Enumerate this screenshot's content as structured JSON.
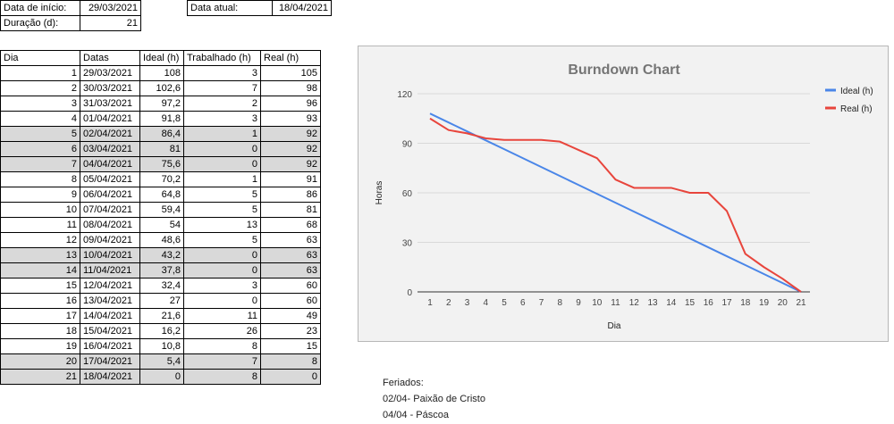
{
  "header": {
    "start_label": "Data de início:",
    "start_value": "29/03/2021",
    "current_label": "Data atual:",
    "current_value": "18/04/2021",
    "duration_label": "Duração (d):",
    "duration_value": "21"
  },
  "table": {
    "columns": [
      "Dia",
      "Datas",
      "Ideal (h)",
      "Trabalhado (h)",
      "Real (h)"
    ],
    "rows": [
      {
        "dia": "1",
        "data": "29/03/2021",
        "ideal": "108",
        "trab": "3",
        "real": "105",
        "hl": false
      },
      {
        "dia": "2",
        "data": "30/03/2021",
        "ideal": "102,6",
        "trab": "7",
        "real": "98",
        "hl": false
      },
      {
        "dia": "3",
        "data": "31/03/2021",
        "ideal": "97,2",
        "trab": "2",
        "real": "96",
        "hl": false
      },
      {
        "dia": "4",
        "data": "01/04/2021",
        "ideal": "91,8",
        "trab": "3",
        "real": "93",
        "hl": false
      },
      {
        "dia": "5",
        "data": "02/04/2021",
        "ideal": "86,4",
        "trab": "1",
        "real": "92",
        "hl": true
      },
      {
        "dia": "6",
        "data": "03/04/2021",
        "ideal": "81",
        "trab": "0",
        "real": "92",
        "hl": true
      },
      {
        "dia": "7",
        "data": "04/04/2021",
        "ideal": "75,6",
        "trab": "0",
        "real": "92",
        "hl": true
      },
      {
        "dia": "8",
        "data": "05/04/2021",
        "ideal": "70,2",
        "trab": "1",
        "real": "91",
        "hl": false
      },
      {
        "dia": "9",
        "data": "06/04/2021",
        "ideal": "64,8",
        "trab": "5",
        "real": "86",
        "hl": false
      },
      {
        "dia": "10",
        "data": "07/04/2021",
        "ideal": "59,4",
        "trab": "5",
        "real": "81",
        "hl": false
      },
      {
        "dia": "11",
        "data": "08/04/2021",
        "ideal": "54",
        "trab": "13",
        "real": "68",
        "hl": false
      },
      {
        "dia": "12",
        "data": "09/04/2021",
        "ideal": "48,6",
        "trab": "5",
        "real": "63",
        "hl": false
      },
      {
        "dia": "13",
        "data": "10/04/2021",
        "ideal": "43,2",
        "trab": "0",
        "real": "63",
        "hl": true
      },
      {
        "dia": "14",
        "data": "11/04/2021",
        "ideal": "37,8",
        "trab": "0",
        "real": "63",
        "hl": true
      },
      {
        "dia": "15",
        "data": "12/04/2021",
        "ideal": "32,4",
        "trab": "3",
        "real": "60",
        "hl": false
      },
      {
        "dia": "16",
        "data": "13/04/2021",
        "ideal": "27",
        "trab": "0",
        "real": "60",
        "hl": false
      },
      {
        "dia": "17",
        "data": "14/04/2021",
        "ideal": "21,6",
        "trab": "11",
        "real": "49",
        "hl": false
      },
      {
        "dia": "18",
        "data": "15/04/2021",
        "ideal": "16,2",
        "trab": "26",
        "real": "23",
        "hl": false
      },
      {
        "dia": "19",
        "data": "16/04/2021",
        "ideal": "10,8",
        "trab": "8",
        "real": "15",
        "hl": false
      },
      {
        "dia": "20",
        "data": "17/04/2021",
        "ideal": "5,4",
        "trab": "7",
        "real": "8",
        "hl": true
      },
      {
        "dia": "21",
        "data": "18/04/2021",
        "ideal": "0",
        "trab": "8",
        "real": "0",
        "hl": true
      }
    ]
  },
  "chart_data": {
    "type": "line",
    "title": "Burndown Chart",
    "xlabel": "Dia",
    "ylabel": "Horas",
    "x": [
      1,
      2,
      3,
      4,
      5,
      6,
      7,
      8,
      9,
      10,
      11,
      12,
      13,
      14,
      15,
      16,
      17,
      18,
      19,
      20,
      21
    ],
    "ylim": [
      0,
      120
    ],
    "yticks": [
      0,
      30,
      60,
      90,
      120
    ],
    "grid": true,
    "legend": "right",
    "series": [
      {
        "name": "Ideal (h)",
        "color": "#4a86e8",
        "values": [
          108,
          102.6,
          97.2,
          91.8,
          86.4,
          81,
          75.6,
          70.2,
          64.8,
          59.4,
          54,
          48.6,
          43.2,
          37.8,
          32.4,
          27,
          21.6,
          16.2,
          10.8,
          5.4,
          0
        ]
      },
      {
        "name": "Real (h)",
        "color": "#e8453c",
        "values": [
          105,
          98,
          96,
          93,
          92,
          92,
          92,
          91,
          86,
          81,
          68,
          63,
          63,
          63,
          60,
          60,
          49,
          23,
          15,
          8,
          0
        ]
      }
    ]
  },
  "notes": {
    "title": "Feriados:",
    "items": [
      "02/04- Paixão de Cristo",
      "04/04 - Páscoa"
    ]
  }
}
